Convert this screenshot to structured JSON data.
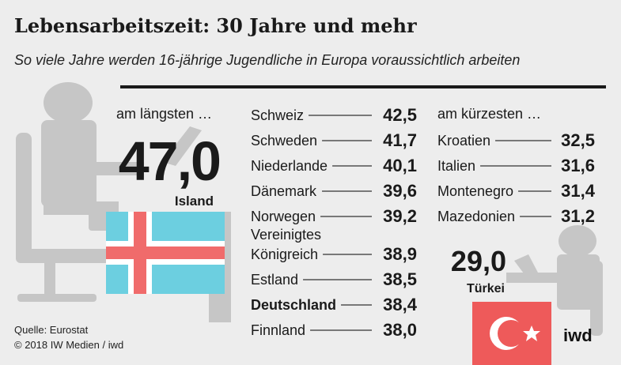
{
  "title": "Lebensarbeitszeit: 30 Jahre und mehr",
  "subtitle": "So viele Jahre werden 16-jährige Jugendliche in Europa voraussichtlich arbeiten",
  "source": {
    "line1": "Quelle: Eurostat",
    "line2": "© 2018 IW Medien / iwd"
  },
  "logo": "iwd",
  "colors": {
    "silhouette": "#c6c6c6",
    "iceland_blue": "#6ccfe0",
    "iceland_red": "#f06b6b",
    "turkey_red": "#ee5a5a",
    "text": "#1a1a1a"
  },
  "icons": [
    "person-at-desk-icon",
    "iceland-flag-icon",
    "turkey-flag-icon"
  ],
  "chart_data": {
    "type": "table",
    "unit": "Jahre",
    "highest": {
      "label": "am längsten …",
      "country": "Island",
      "value": "47,0"
    },
    "lowest": {
      "label": "am kürzesten …",
      "country": "Türkei",
      "value": "29,0"
    },
    "middle_list": [
      {
        "name": "Schweiz",
        "value": "42,5",
        "bold": false
      },
      {
        "name": "Schweden",
        "value": "41,7",
        "bold": false
      },
      {
        "name": "Niederlande",
        "value": "40,1",
        "bold": false
      },
      {
        "name": "Dänemark",
        "value": "39,6",
        "bold": false
      },
      {
        "name": "Norwegen",
        "value": "39,2",
        "bold": false
      },
      {
        "name": "Vereinigtes Königreich",
        "line1": "Vereinigtes",
        "line2": "Königreich",
        "value": "38,9",
        "bold": false
      },
      {
        "name": "Estland",
        "value": "38,5",
        "bold": false
      },
      {
        "name": "Deutschland",
        "value": "38,4",
        "bold": true
      },
      {
        "name": "Finnland",
        "value": "38,0",
        "bold": false
      }
    ],
    "right_list": [
      {
        "name": "Kroatien",
        "value": "32,5"
      },
      {
        "name": "Italien",
        "value": "31,6"
      },
      {
        "name": "Montenegro",
        "value": "31,4"
      },
      {
        "name": "Mazedonien",
        "value": "31,2"
      }
    ]
  }
}
